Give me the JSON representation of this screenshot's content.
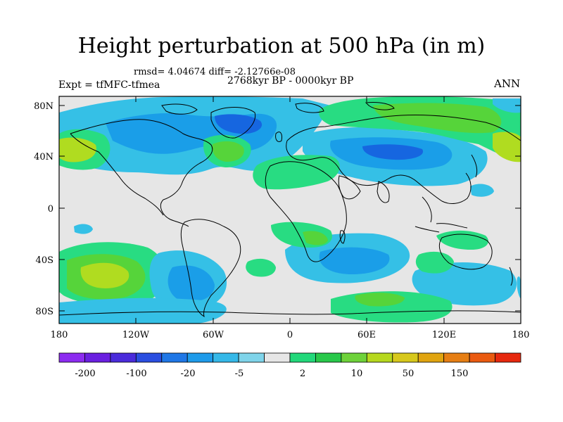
{
  "title": "Height perturbation at 500 hPa (in m)",
  "stats": "rmsd= 4.04674 diff= -2.12766e-08",
  "period": "2768kyr BP - 0000kyr BP",
  "experiment": "Expt = tfMFC-tfmea",
  "season": "ANN",
  "axes": {
    "lat_labels": [
      "80N",
      "40N",
      "0",
      "40S",
      "80S"
    ],
    "lon_labels": [
      "180",
      "120W",
      "60W",
      "0",
      "60E",
      "120E",
      "180"
    ]
  },
  "colorbar": {
    "labels": [
      "-200",
      "-100",
      "-20",
      "-5",
      "2",
      "10",
      "50",
      "150"
    ],
    "colors": [
      "#8c2bf0",
      "#6a1fe0",
      "#4a2bdb",
      "#2a4ee0",
      "#1f77e6",
      "#1e9bea",
      "#35b8e8",
      "#7fd4ea",
      "#e6e6e6",
      "#22d87a",
      "#28c84a",
      "#6ed23a",
      "#b6d81e",
      "#d7c81c",
      "#e0a410",
      "#e67e14",
      "#ea5a10",
      "#e6280e"
    ]
  },
  "palette": {
    "neutral": "#e6e6e6",
    "blue_light": "#35c0e6",
    "blue_mid": "#1a9ee8",
    "blue_dark": "#1666e0",
    "green_light": "#28dc82",
    "green": "#56d43a",
    "yellow_green": "#b0dc20"
  }
}
